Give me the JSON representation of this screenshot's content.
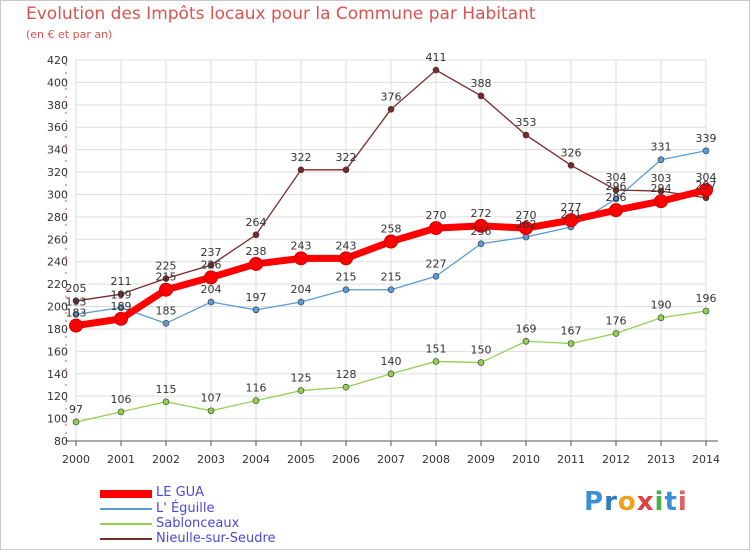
{
  "header": {
    "title": "Evolution des Impôts locaux pour la Commune par Habitant",
    "subtitle": "(en € et par an)"
  },
  "brand": {
    "letters": [
      "P",
      "r",
      "o",
      "x",
      "i",
      "t",
      "i"
    ],
    "colors": [
      "#3a8fd8",
      "#2c7cc4",
      "#f0a020",
      "#e04040",
      "#48b048",
      "#3a8fd8",
      "#e06060"
    ]
  },
  "chart_data": {
    "type": "line",
    "title": "Evolution des Impôts locaux pour la Commune par Habitant",
    "subtitle": "(en € et par an)",
    "xlabel": "",
    "ylabel": "",
    "x": [
      2000,
      2001,
      2002,
      2003,
      2004,
      2005,
      2006,
      2007,
      2008,
      2009,
      2010,
      2011,
      2012,
      2013,
      2014
    ],
    "ylim": [
      80,
      420
    ],
    "yticks": [
      80,
      100,
      120,
      140,
      160,
      180,
      200,
      220,
      240,
      260,
      280,
      300,
      320,
      340,
      360,
      380,
      400,
      420
    ],
    "grid": true,
    "legend_position": "bottom-left",
    "series": [
      {
        "name": "LE GUA",
        "color": "#ff0000",
        "values": [
          183,
          189,
          215,
          226,
          238,
          243,
          243,
          258,
          270,
          272,
          270,
          277,
          286,
          294,
          304
        ]
      },
      {
        "name": "L' Éguille",
        "color": "#5b9bd5",
        "values": [
          193,
          199,
          185,
          204,
          197,
          204,
          215,
          215,
          227,
          256,
          262,
          271,
          296,
          331,
          339
        ]
      },
      {
        "name": "Sablonceaux",
        "color": "#92d050",
        "values": [
          97,
          106,
          115,
          107,
          116,
          125,
          128,
          140,
          151,
          150,
          169,
          167,
          176,
          190,
          196
        ]
      },
      {
        "name": "Nieulle-sur-Seudre",
        "color": "#7b2a2a",
        "values": [
          205,
          211,
          225,
          237,
          264,
          322,
          322,
          376,
          411,
          388,
          353,
          326,
          304,
          303,
          297
        ]
      }
    ]
  }
}
